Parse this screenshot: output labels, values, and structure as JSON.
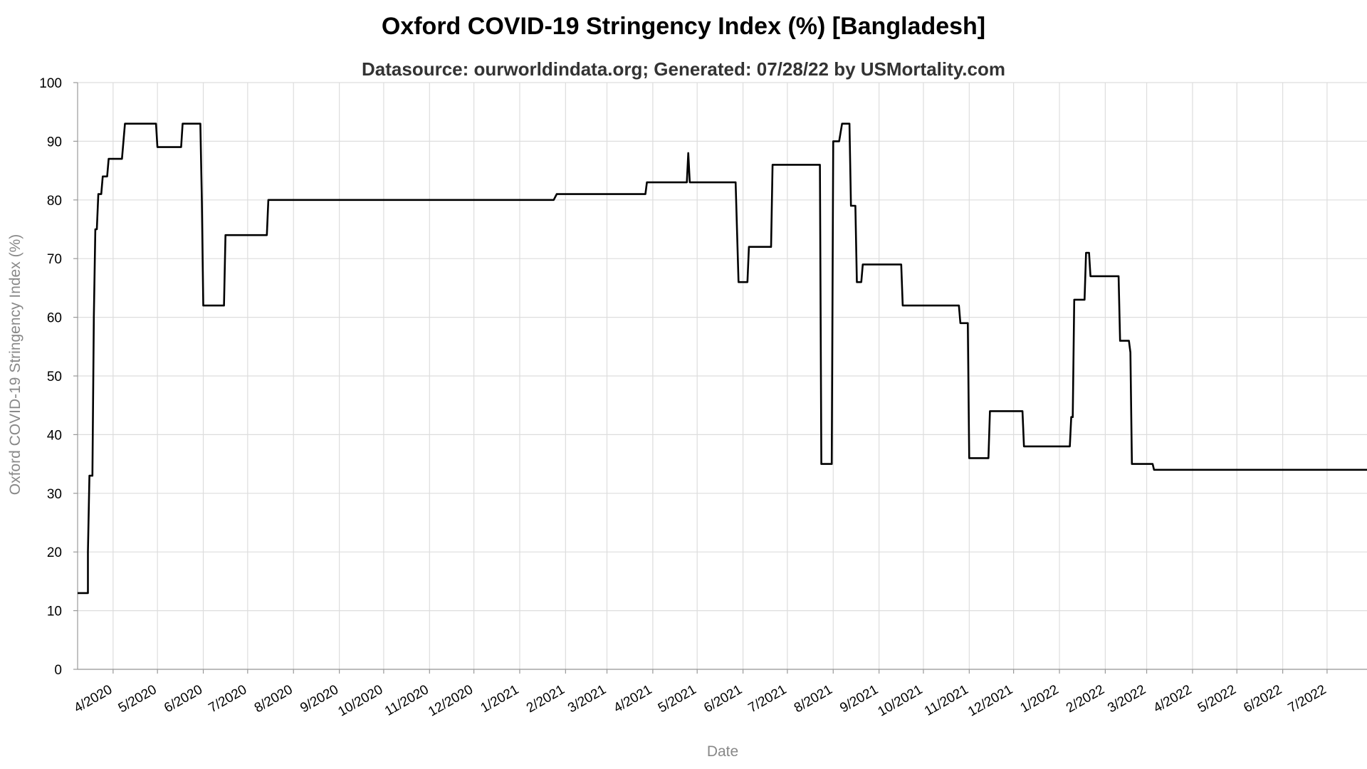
{
  "title": "Oxford COVID-19 Stringency Index (%) [Bangladesh]",
  "subtitle": "Datasource: ourworldindata.org; Generated: 07/28/22 by USMortality.com",
  "chart_data": {
    "type": "line",
    "title": "Oxford COVID-19 Stringency Index (%) [Bangladesh]",
    "xlabel": "Date",
    "ylabel": "Oxford COVID-19 Stringency Index (%)",
    "ylim": [
      0,
      100
    ],
    "yticks": [
      0,
      10,
      20,
      30,
      40,
      50,
      60,
      70,
      80,
      90,
      100
    ],
    "xlim": [
      "2020-03-08",
      "2022-07-28"
    ],
    "xticks": [
      {
        "date": "2020-04-01",
        "label": "4/2020"
      },
      {
        "date": "2020-05-01",
        "label": "5/2020"
      },
      {
        "date": "2020-06-01",
        "label": "6/2020"
      },
      {
        "date": "2020-07-01",
        "label": "7/2020"
      },
      {
        "date": "2020-08-01",
        "label": "8/2020"
      },
      {
        "date": "2020-09-01",
        "label": "9/2020"
      },
      {
        "date": "2020-10-01",
        "label": "10/2020"
      },
      {
        "date": "2020-11-01",
        "label": "11/2020"
      },
      {
        "date": "2020-12-01",
        "label": "12/2020"
      },
      {
        "date": "2021-01-01",
        "label": "1/2021"
      },
      {
        "date": "2021-02-01",
        "label": "2/2021"
      },
      {
        "date": "2021-03-01",
        "label": "3/2021"
      },
      {
        "date": "2021-04-01",
        "label": "4/2021"
      },
      {
        "date": "2021-05-01",
        "label": "5/2021"
      },
      {
        "date": "2021-06-01",
        "label": "6/2021"
      },
      {
        "date": "2021-07-01",
        "label": "7/2021"
      },
      {
        "date": "2021-08-01",
        "label": "8/2021"
      },
      {
        "date": "2021-09-01",
        "label": "9/2021"
      },
      {
        "date": "2021-10-01",
        "label": "10/2021"
      },
      {
        "date": "2021-11-01",
        "label": "11/2021"
      },
      {
        "date": "2021-12-01",
        "label": "12/2021"
      },
      {
        "date": "2022-01-01",
        "label": "1/2022"
      },
      {
        "date": "2022-02-01",
        "label": "2/2022"
      },
      {
        "date": "2022-03-01",
        "label": "3/2022"
      },
      {
        "date": "2022-04-01",
        "label": "4/2022"
      },
      {
        "date": "2022-05-01",
        "label": "5/2022"
      },
      {
        "date": "2022-06-01",
        "label": "6/2022"
      },
      {
        "date": "2022-07-01",
        "label": "7/2022"
      }
    ],
    "grid": true,
    "line_color": "#000000",
    "series": [
      {
        "points": [
          [
            "2020-03-08",
            13
          ],
          [
            "2020-03-15",
            13
          ],
          [
            "2020-03-15",
            20
          ],
          [
            "2020-03-16",
            33
          ],
          [
            "2020-03-18",
            33
          ],
          [
            "2020-03-19",
            60
          ],
          [
            "2020-03-20",
            75
          ],
          [
            "2020-03-21",
            75
          ],
          [
            "2020-03-22",
            81
          ],
          [
            "2020-03-24",
            81
          ],
          [
            "2020-03-25",
            84
          ],
          [
            "2020-03-28",
            84
          ],
          [
            "2020-03-29",
            87
          ],
          [
            "2020-04-07",
            87
          ],
          [
            "2020-04-09",
            93
          ],
          [
            "2020-04-30",
            93
          ],
          [
            "2020-05-01",
            89
          ],
          [
            "2020-05-17",
            89
          ],
          [
            "2020-05-18",
            93
          ],
          [
            "2020-05-30",
            93
          ],
          [
            "2020-05-31",
            80
          ],
          [
            "2020-06-01",
            62
          ],
          [
            "2020-06-15",
            62
          ],
          [
            "2020-06-16",
            74
          ],
          [
            "2020-07-14",
            74
          ],
          [
            "2020-07-15",
            80
          ],
          [
            "2021-01-24",
            80
          ],
          [
            "2021-01-26",
            81
          ],
          [
            "2021-03-27",
            81
          ],
          [
            "2021-03-28",
            83
          ],
          [
            "2021-04-24",
            83
          ],
          [
            "2021-04-25",
            88
          ],
          [
            "2021-04-26",
            83
          ],
          [
            "2021-05-27",
            83
          ],
          [
            "2021-05-29",
            66
          ],
          [
            "2021-06-04",
            66
          ],
          [
            "2021-06-05",
            72
          ],
          [
            "2021-06-20",
            72
          ],
          [
            "2021-06-21",
            86
          ],
          [
            "2021-07-23",
            86
          ],
          [
            "2021-07-24",
            35
          ],
          [
            "2021-07-31",
            35
          ],
          [
            "2021-08-01",
            90
          ],
          [
            "2021-08-05",
            90
          ],
          [
            "2021-08-07",
            93
          ],
          [
            "2021-08-12",
            93
          ],
          [
            "2021-08-13",
            79
          ],
          [
            "2021-08-16",
            79
          ],
          [
            "2021-08-17",
            66
          ],
          [
            "2021-08-20",
            66
          ],
          [
            "2021-08-21",
            69
          ],
          [
            "2021-09-16",
            69
          ],
          [
            "2021-09-17",
            62
          ],
          [
            "2021-10-25",
            62
          ],
          [
            "2021-10-26",
            59
          ],
          [
            "2021-10-31",
            59
          ],
          [
            "2021-11-01",
            36
          ],
          [
            "2021-11-14",
            36
          ],
          [
            "2021-11-15",
            44
          ],
          [
            "2021-12-07",
            44
          ],
          [
            "2021-12-08",
            38
          ],
          [
            "2022-01-08",
            38
          ],
          [
            "2022-01-09",
            43
          ],
          [
            "2022-01-10",
            43
          ],
          [
            "2022-01-11",
            63
          ],
          [
            "2022-01-18",
            63
          ],
          [
            "2022-01-19",
            71
          ],
          [
            "2022-01-21",
            71
          ],
          [
            "2022-01-22",
            67
          ],
          [
            "2022-02-10",
            67
          ],
          [
            "2022-02-11",
            56
          ],
          [
            "2022-02-17",
            56
          ],
          [
            "2022-02-18",
            54
          ],
          [
            "2022-02-19",
            35
          ],
          [
            "2022-03-05",
            35
          ],
          [
            "2022-03-06",
            34
          ],
          [
            "2022-07-28",
            34
          ]
        ]
      }
    ]
  }
}
